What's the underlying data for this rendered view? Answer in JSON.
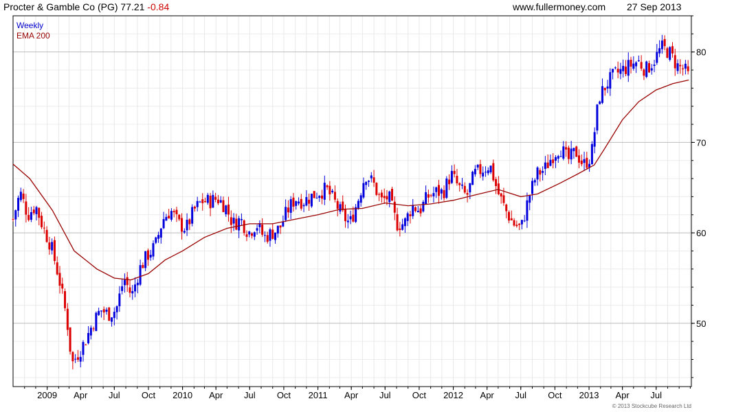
{
  "header": {
    "company": "Procter & Gamble Co (PG)",
    "price": "77.21",
    "change": "-0.84",
    "site": "www.fullermoney.com",
    "date": "27 Sep 2013"
  },
  "legend": {
    "period": "Weekly",
    "indicator": "EMA 200"
  },
  "copyright": "© 2013 Stockcube Research Ltd",
  "colors": {
    "up": "#0000dd",
    "down": "#dd0000",
    "ema": "#990000",
    "grid": "#dddddd",
    "major_grid": "#bbbbbb"
  },
  "chart_data": {
    "type": "candlestick",
    "title": "Procter & Gamble Co (PG)",
    "frequency": "Weekly",
    "ylim": [
      43,
      84
    ],
    "yticks": [
      50,
      60,
      70,
      80
    ],
    "xlim": [
      "2008-10-01",
      "2013-10-04"
    ],
    "xticks": [
      {
        "label": "2009",
        "date": "2009-01-01"
      },
      {
        "label": "Apr",
        "date": "2009-04-01"
      },
      {
        "label": "Jul",
        "date": "2009-07-01"
      },
      {
        "label": "Oct",
        "date": "2009-10-01"
      },
      {
        "label": "2010",
        "date": "2010-01-01"
      },
      {
        "label": "Apr",
        "date": "2010-04-01"
      },
      {
        "label": "Jul",
        "date": "2010-07-01"
      },
      {
        "label": "Oct",
        "date": "2010-10-01"
      },
      {
        "label": "2011",
        "date": "2011-01-01"
      },
      {
        "label": "Apr",
        "date": "2011-04-01"
      },
      {
        "label": "Jul",
        "date": "2011-07-01"
      },
      {
        "label": "Oct",
        "date": "2011-10-01"
      },
      {
        "label": "2012",
        "date": "2012-01-01"
      },
      {
        "label": "Apr",
        "date": "2012-04-01"
      },
      {
        "label": "Jul",
        "date": "2012-07-01"
      },
      {
        "label": "Oct",
        "date": "2012-10-01"
      },
      {
        "label": "2013",
        "date": "2013-01-01"
      },
      {
        "label": "Apr",
        "date": "2013-04-01"
      },
      {
        "label": "Jul",
        "date": "2013-07-01"
      }
    ],
    "price_path": [
      [
        "2008-10-01",
        61.5
      ],
      [
        "2008-10-20",
        64.5
      ],
      [
        "2008-11-10",
        62.0
      ],
      [
        "2008-12-01",
        63.0
      ],
      [
        "2008-12-22",
        60.5
      ],
      [
        "2009-01-12",
        58.5
      ],
      [
        "2009-02-02",
        55.0
      ],
      [
        "2009-02-23",
        50.5
      ],
      [
        "2009-03-09",
        45.5
      ],
      [
        "2009-03-23",
        46.5
      ],
      [
        "2009-04-13",
        48.0
      ],
      [
        "2009-05-04",
        50.0
      ],
      [
        "2009-05-25",
        51.5
      ],
      [
        "2009-06-15",
        51.0
      ],
      [
        "2009-07-06",
        51.5
      ],
      [
        "2009-07-27",
        55.0
      ],
      [
        "2009-08-17",
        53.0
      ],
      [
        "2009-09-07",
        56.0
      ],
      [
        "2009-09-28",
        57.5
      ],
      [
        "2009-10-19",
        58.5
      ],
      [
        "2009-11-09",
        61.5
      ],
      [
        "2009-11-30",
        62.5
      ],
      [
        "2009-12-21",
        61.0
      ],
      [
        "2010-01-11",
        60.5
      ],
      [
        "2010-02-01",
        62.5
      ],
      [
        "2010-02-22",
        63.5
      ],
      [
        "2010-03-15",
        63.5
      ],
      [
        "2010-04-05",
        63.8
      ],
      [
        "2010-04-26",
        63.0
      ],
      [
        "2010-05-17",
        61.0
      ],
      [
        "2010-06-07",
        61.5
      ],
      [
        "2010-06-28",
        60.0
      ],
      [
        "2010-07-19",
        61.0
      ],
      [
        "2010-08-09",
        59.5
      ],
      [
        "2010-08-30",
        60.0
      ],
      [
        "2010-09-20",
        60.5
      ],
      [
        "2010-10-11",
        62.5
      ],
      [
        "2010-11-01",
        63.8
      ],
      [
        "2010-11-22",
        63.5
      ],
      [
        "2010-12-13",
        64.0
      ],
      [
        "2011-01-03",
        64.5
      ],
      [
        "2011-01-24",
        64.8
      ],
      [
        "2011-02-14",
        63.5
      ],
      [
        "2011-03-07",
        62.0
      ],
      [
        "2011-03-28",
        61.0
      ],
      [
        "2011-04-18",
        63.5
      ],
      [
        "2011-05-09",
        66.5
      ],
      [
        "2011-05-30",
        65.5
      ],
      [
        "2011-06-20",
        63.5
      ],
      [
        "2011-07-11",
        64.0
      ],
      [
        "2011-08-01",
        61.0
      ],
      [
        "2011-08-22",
        61.0
      ],
      [
        "2011-09-12",
        63.0
      ],
      [
        "2011-10-03",
        62.5
      ],
      [
        "2011-10-24",
        64.0
      ],
      [
        "2011-11-14",
        64.5
      ],
      [
        "2011-12-05",
        64.5
      ],
      [
        "2011-12-26",
        66.5
      ],
      [
        "2012-01-16",
        65.0
      ],
      [
        "2012-02-06",
        64.0
      ],
      [
        "2012-02-27",
        66.5
      ],
      [
        "2012-03-19",
        67.0
      ],
      [
        "2012-04-09",
        67.5
      ],
      [
        "2012-04-30",
        64.5
      ],
      [
        "2012-05-21",
        62.5
      ],
      [
        "2012-06-11",
        61.0
      ],
      [
        "2012-07-02",
        60.5
      ],
      [
        "2012-07-23",
        64.0
      ],
      [
        "2012-08-13",
        66.5
      ],
      [
        "2012-09-03",
        67.0
      ],
      [
        "2012-09-24",
        68.5
      ],
      [
        "2012-10-15",
        69.5
      ],
      [
        "2012-11-05",
        68.0
      ],
      [
        "2012-11-26",
        69.0
      ],
      [
        "2012-12-17",
        67.5
      ],
      [
        "2013-01-07",
        68.5
      ],
      [
        "2013-01-28",
        75.0
      ],
      [
        "2013-02-18",
        76.5
      ],
      [
        "2013-03-11",
        77.5
      ],
      [
        "2013-04-01",
        78.0
      ],
      [
        "2013-04-22",
        78.5
      ],
      [
        "2013-05-13",
        79.0
      ],
      [
        "2013-06-03",
        78.0
      ],
      [
        "2013-06-24",
        79.0
      ],
      [
        "2013-07-15",
        80.5
      ],
      [
        "2013-08-05",
        80.0
      ],
      [
        "2013-08-26",
        78.5
      ],
      [
        "2013-09-16",
        78.0
      ],
      [
        "2013-09-27",
        77.21
      ]
    ],
    "ema_200": [
      [
        "2008-10-01",
        67.6
      ],
      [
        "2008-11-15",
        66.0
      ],
      [
        "2009-01-15",
        62.5
      ],
      [
        "2009-03-15",
        58.0
      ],
      [
        "2009-05-15",
        56.0
      ],
      [
        "2009-07-01",
        55.0
      ],
      [
        "2009-08-15",
        54.8
      ],
      [
        "2009-10-01",
        55.5
      ],
      [
        "2009-11-15",
        57.0
      ],
      [
        "2010-01-01",
        58.0
      ],
      [
        "2010-03-01",
        59.5
      ],
      [
        "2010-05-01",
        60.5
      ],
      [
        "2010-07-01",
        61.0
      ],
      [
        "2010-09-01",
        61.0
      ],
      [
        "2010-11-01",
        61.5
      ],
      [
        "2011-01-01",
        62.0
      ],
      [
        "2011-03-01",
        62.6
      ],
      [
        "2011-05-01",
        62.7
      ],
      [
        "2011-07-01",
        63.3
      ],
      [
        "2011-09-01",
        63.0
      ],
      [
        "2011-11-01",
        63.2
      ],
      [
        "2012-01-01",
        63.6
      ],
      [
        "2012-03-01",
        64.2
      ],
      [
        "2012-05-01",
        64.8
      ],
      [
        "2012-07-01",
        64.0
      ],
      [
        "2012-08-15",
        64.3
      ],
      [
        "2012-10-15",
        65.5
      ],
      [
        "2012-12-01",
        66.5
      ],
      [
        "2013-01-15",
        67.5
      ],
      [
        "2013-02-15",
        69.5
      ],
      [
        "2013-04-01",
        72.5
      ],
      [
        "2013-05-15",
        74.5
      ],
      [
        "2013-07-01",
        75.8
      ],
      [
        "2013-08-15",
        76.5
      ],
      [
        "2013-09-27",
        76.9
      ]
    ]
  }
}
